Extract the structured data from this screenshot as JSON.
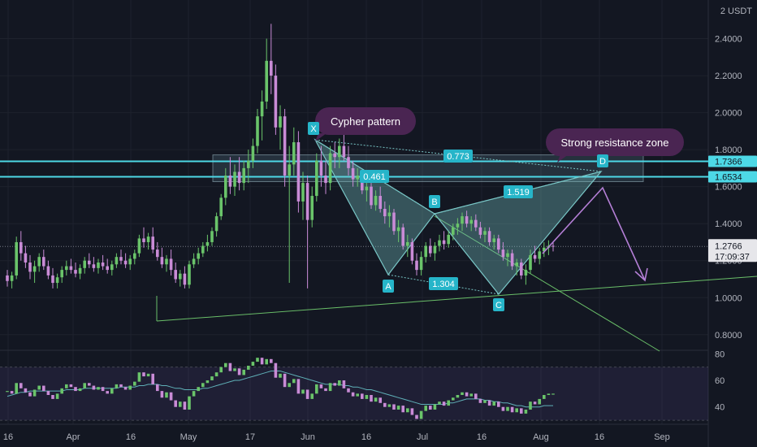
{
  "price_axis": {
    "unit": "2 USDT",
    "ticks": [
      "2.4000",
      "2.2000",
      "2.0000",
      "1.8000",
      "1.6000",
      "1.4000",
      "1.2000",
      "1.0000",
      "0.8000"
    ],
    "tick_values": [
      2.4,
      2.2,
      2.0,
      1.8,
      1.6,
      1.4,
      1.2,
      1.0,
      0.8
    ],
    "range": [
      0.72,
      2.6
    ]
  },
  "rsi_axis": {
    "ticks": [
      "80",
      "60",
      "40"
    ],
    "tick_values": [
      80,
      60,
      40
    ],
    "range": [
      27,
      82
    ],
    "band": [
      30,
      70
    ]
  },
  "time_axis": {
    "labels": [
      "16",
      "Apr",
      "16",
      "May",
      "17",
      "Jun",
      "16",
      "Jul",
      "16",
      "Aug",
      "16",
      "Sep"
    ]
  },
  "price_labels": {
    "resistance_high": "1.7366",
    "resistance_low": "1.6534",
    "current_price": "1.2766",
    "countdown": "17:09:37"
  },
  "annotations": {
    "cypher_label": "Cypher pattern",
    "resistance_label": "Strong resistance zone",
    "points": {
      "x": "X",
      "a": "A",
      "b": "B",
      "c": "C",
      "d": "D"
    },
    "ratios": {
      "xb": "0.461",
      "xd": "0.773",
      "bd": "1.519",
      "ac": "1.304"
    }
  },
  "colors": {
    "background": "#131722",
    "up_candle": "#6ac46a",
    "down_candle": "#c98bd6",
    "resistance_line": "#4dd8e6",
    "pattern_fill": "#79c6c6",
    "pattern_label_bg": "#26b5c9",
    "callout_bg": "#4a2552",
    "projection_arrow": "#b47fd6",
    "trendline": "#6abf69",
    "rsi_line": "#5fb0b7"
  },
  "chart_data": {
    "type": "candlestick",
    "symbol_unit": "USDT",
    "candles_ohlc": [
      [
        1.12,
        1.15,
        1.06,
        1.09
      ],
      [
        1.09,
        1.14,
        1.05,
        1.12
      ],
      [
        1.12,
        1.33,
        1.1,
        1.3
      ],
      [
        1.3,
        1.36,
        1.2,
        1.24
      ],
      [
        1.24,
        1.28,
        1.16,
        1.19
      ],
      [
        1.19,
        1.23,
        1.1,
        1.14
      ],
      [
        1.14,
        1.2,
        1.08,
        1.17
      ],
      [
        1.17,
        1.24,
        1.14,
        1.22
      ],
      [
        1.22,
        1.26,
        1.15,
        1.17
      ],
      [
        1.17,
        1.2,
        1.1,
        1.12
      ],
      [
        1.12,
        1.16,
        1.05,
        1.08
      ],
      [
        1.08,
        1.13,
        1.05,
        1.11
      ],
      [
        1.11,
        1.17,
        1.08,
        1.15
      ],
      [
        1.15,
        1.2,
        1.12,
        1.17
      ],
      [
        1.17,
        1.21,
        1.13,
        1.15
      ],
      [
        1.15,
        1.19,
        1.11,
        1.13
      ],
      [
        1.13,
        1.18,
        1.1,
        1.16
      ],
      [
        1.16,
        1.22,
        1.13,
        1.2
      ],
      [
        1.2,
        1.24,
        1.16,
        1.18
      ],
      [
        1.18,
        1.22,
        1.14,
        1.16
      ],
      [
        1.16,
        1.21,
        1.13,
        1.19
      ],
      [
        1.19,
        1.23,
        1.15,
        1.17
      ],
      [
        1.17,
        1.21,
        1.13,
        1.15
      ],
      [
        1.15,
        1.2,
        1.12,
        1.18
      ],
      [
        1.18,
        1.24,
        1.16,
        1.22
      ],
      [
        1.22,
        1.26,
        1.18,
        1.2
      ],
      [
        1.2,
        1.24,
        1.16,
        1.18
      ],
      [
        1.18,
        1.23,
        1.15,
        1.21
      ],
      [
        1.21,
        1.26,
        1.18,
        1.24
      ],
      [
        1.24,
        1.34,
        1.22,
        1.32
      ],
      [
        1.32,
        1.38,
        1.27,
        1.3
      ],
      [
        1.3,
        1.35,
        1.26,
        1.33
      ],
      [
        1.33,
        1.38,
        1.24,
        1.26
      ],
      [
        1.26,
        1.3,
        1.2,
        1.22
      ],
      [
        1.22,
        1.27,
        1.16,
        1.18
      ],
      [
        1.18,
        1.23,
        1.14,
        1.21
      ],
      [
        1.21,
        1.26,
        1.12,
        1.15
      ],
      [
        1.15,
        1.19,
        1.08,
        1.1
      ],
      [
        1.1,
        1.15,
        1.06,
        1.13
      ],
      [
        1.13,
        1.17,
        1.05,
        1.07
      ],
      [
        1.07,
        1.2,
        1.05,
        1.18
      ],
      [
        1.18,
        1.24,
        1.16,
        1.21
      ],
      [
        1.21,
        1.27,
        1.18,
        1.24
      ],
      [
        1.24,
        1.3,
        1.22,
        1.28
      ],
      [
        1.28,
        1.34,
        1.25,
        1.3
      ],
      [
        1.3,
        1.38,
        1.28,
        1.36
      ],
      [
        1.36,
        1.46,
        1.33,
        1.44
      ],
      [
        1.44,
        1.56,
        1.42,
        1.54
      ],
      [
        1.54,
        1.7,
        1.5,
        1.66
      ],
      [
        1.66,
        1.76,
        1.56,
        1.6
      ],
      [
        1.6,
        1.72,
        1.55,
        1.68
      ],
      [
        1.68,
        1.76,
        1.58,
        1.62
      ],
      [
        1.62,
        1.74,
        1.58,
        1.7
      ],
      [
        1.7,
        1.8,
        1.62,
        1.74
      ],
      [
        1.74,
        1.86,
        1.7,
        1.82
      ],
      [
        1.82,
        2.02,
        1.78,
        1.98
      ],
      [
        1.98,
        2.12,
        1.85,
        2.06
      ],
      [
        2.06,
        2.4,
        2.02,
        2.28
      ],
      [
        2.28,
        2.48,
        2.1,
        2.2
      ],
      [
        2.2,
        2.26,
        1.88,
        1.92
      ],
      [
        1.92,
        2.04,
        1.8,
        1.98
      ],
      [
        1.98,
        2.02,
        1.6,
        1.66
      ],
      [
        1.66,
        1.82,
        1.08,
        1.72
      ],
      [
        1.72,
        1.92,
        1.66,
        1.84
      ],
      [
        1.84,
        1.9,
        1.46,
        1.52
      ],
      [
        1.52,
        1.68,
        1.42,
        1.62
      ],
      [
        1.62,
        1.66,
        1.05,
        1.42
      ],
      [
        1.42,
        1.6,
        1.38,
        1.55
      ],
      [
        1.55,
        1.78,
        1.52,
        1.74
      ],
      [
        1.74,
        1.82,
        1.6,
        1.66
      ],
      [
        1.66,
        1.74,
        1.56,
        1.62
      ],
      [
        1.62,
        1.82,
        1.58,
        1.78
      ],
      [
        1.78,
        1.84,
        1.7,
        1.76
      ],
      [
        1.76,
        1.86,
        1.7,
        1.82
      ],
      [
        1.82,
        1.9,
        1.74,
        1.76
      ],
      [
        1.76,
        1.82,
        1.66,
        1.7
      ],
      [
        1.7,
        1.74,
        1.6,
        1.64
      ],
      [
        1.64,
        1.7,
        1.6,
        1.66
      ],
      [
        1.66,
        1.68,
        1.56,
        1.58
      ],
      [
        1.58,
        1.64,
        1.52,
        1.6
      ],
      [
        1.6,
        1.62,
        1.48,
        1.5
      ],
      [
        1.5,
        1.58,
        1.47,
        1.55
      ],
      [
        1.55,
        1.6,
        1.46,
        1.48
      ],
      [
        1.48,
        1.52,
        1.4,
        1.44
      ],
      [
        1.44,
        1.5,
        1.38,
        1.46
      ],
      [
        1.46,
        1.48,
        1.34,
        1.36
      ],
      [
        1.36,
        1.42,
        1.3,
        1.38
      ],
      [
        1.38,
        1.4,
        1.26,
        1.28
      ],
      [
        1.28,
        1.34,
        1.22,
        1.3
      ],
      [
        1.3,
        1.32,
        1.18,
        1.2
      ],
      [
        1.2,
        1.24,
        1.12,
        1.15
      ],
      [
        1.15,
        1.25,
        1.12,
        1.22
      ],
      [
        1.22,
        1.3,
        1.19,
        1.28
      ],
      [
        1.28,
        1.32,
        1.22,
        1.24
      ],
      [
        1.24,
        1.3,
        1.2,
        1.28
      ],
      [
        1.28,
        1.34,
        1.25,
        1.31
      ],
      [
        1.31,
        1.36,
        1.26,
        1.29
      ],
      [
        1.29,
        1.36,
        1.27,
        1.34
      ],
      [
        1.34,
        1.4,
        1.31,
        1.38
      ],
      [
        1.38,
        1.43,
        1.34,
        1.4
      ],
      [
        1.4,
        1.46,
        1.36,
        1.44
      ],
      [
        1.44,
        1.47,
        1.38,
        1.4
      ],
      [
        1.4,
        1.44,
        1.36,
        1.42
      ],
      [
        1.42,
        1.45,
        1.36,
        1.38
      ],
      [
        1.38,
        1.41,
        1.32,
        1.34
      ],
      [
        1.34,
        1.38,
        1.3,
        1.36
      ],
      [
        1.36,
        1.38,
        1.28,
        1.3
      ],
      [
        1.3,
        1.34,
        1.26,
        1.32
      ],
      [
        1.32,
        1.34,
        1.24,
        1.26
      ],
      [
        1.26,
        1.3,
        1.2,
        1.22
      ],
      [
        1.22,
        1.26,
        1.17,
        1.24
      ],
      [
        1.24,
        1.26,
        1.15,
        1.17
      ],
      [
        1.17,
        1.21,
        1.12,
        1.19
      ],
      [
        1.19,
        1.21,
        1.1,
        1.12
      ],
      [
        1.12,
        1.18,
        1.07,
        1.15
      ],
      [
        1.15,
        1.26,
        1.13,
        1.23
      ],
      [
        1.23,
        1.28,
        1.19,
        1.21
      ],
      [
        1.21,
        1.27,
        1.18,
        1.25
      ],
      [
        1.25,
        1.3,
        1.22,
        1.27
      ],
      [
        1.27,
        1.31,
        1.23,
        1.28
      ],
      [
        1.28,
        1.3,
        1.25,
        1.277
      ]
    ],
    "rsi": [
      52,
      50,
      58,
      54,
      51,
      48,
      53,
      56,
      52,
      49,
      46,
      50,
      54,
      57,
      55,
      52,
      54,
      58,
      56,
      53,
      55,
      52,
      50,
      54,
      57,
      55,
      53,
      56,
      59,
      66,
      63,
      65,
      57,
      52,
      47,
      51,
      45,
      40,
      44,
      38,
      48,
      52,
      55,
      58,
      60,
      63,
      66,
      70,
      73,
      67,
      69,
      64,
      68,
      71,
      74,
      77,
      72,
      76,
      73,
      62,
      65,
      55,
      58,
      61,
      50,
      53,
      46,
      50,
      57,
      54,
      52,
      58,
      56,
      60,
      54,
      51,
      48,
      50,
      46,
      49,
      44,
      47,
      43,
      40,
      42,
      38,
      41,
      36,
      39,
      34,
      31,
      37,
      41,
      38,
      42,
      44,
      41,
      45,
      47,
      49,
      51,
      48,
      50,
      46,
      43,
      45,
      41,
      44,
      40,
      37,
      40,
      36,
      39,
      35,
      38,
      44,
      42,
      46,
      49,
      50,
      50
    ],
    "rsi_ma": [
      48,
      49,
      50,
      51,
      51,
      52,
      52,
      52,
      52,
      52,
      52,
      52,
      52,
      53,
      53,
      53,
      53,
      54,
      54,
      54,
      54,
      54,
      54,
      54,
      54,
      55,
      55,
      55,
      55,
      56,
      56,
      57,
      57,
      57,
      56,
      56,
      55,
      54,
      54,
      53,
      53,
      53,
      53,
      54,
      54,
      55,
      56,
      57,
      58,
      59,
      60,
      60,
      61,
      62,
      63,
      64,
      65,
      66,
      67,
      67,
      67,
      66,
      65,
      64,
      63,
      62,
      61,
      60,
      59,
      58,
      57,
      57,
      57,
      57,
      56,
      56,
      55,
      55,
      54,
      53,
      53,
      52,
      51,
      50,
      49,
      48,
      47,
      46,
      45,
      44,
      43,
      42,
      42,
      42,
      42,
      42,
      42,
      43,
      43,
      44,
      45,
      46,
      46,
      46,
      46,
      45,
      45,
      44,
      44,
      43,
      43,
      42,
      41,
      41,
      40,
      40,
      40,
      40,
      41,
      41,
      41
    ],
    "levels": {
      "resistance_zone": [
        1.6534,
        1.7366
      ],
      "current_price": 1.2766
    },
    "pattern_points": {
      "X": 1.86,
      "A": 1.14,
      "B": 1.48,
      "C": 1.1,
      "D": 1.75
    }
  }
}
